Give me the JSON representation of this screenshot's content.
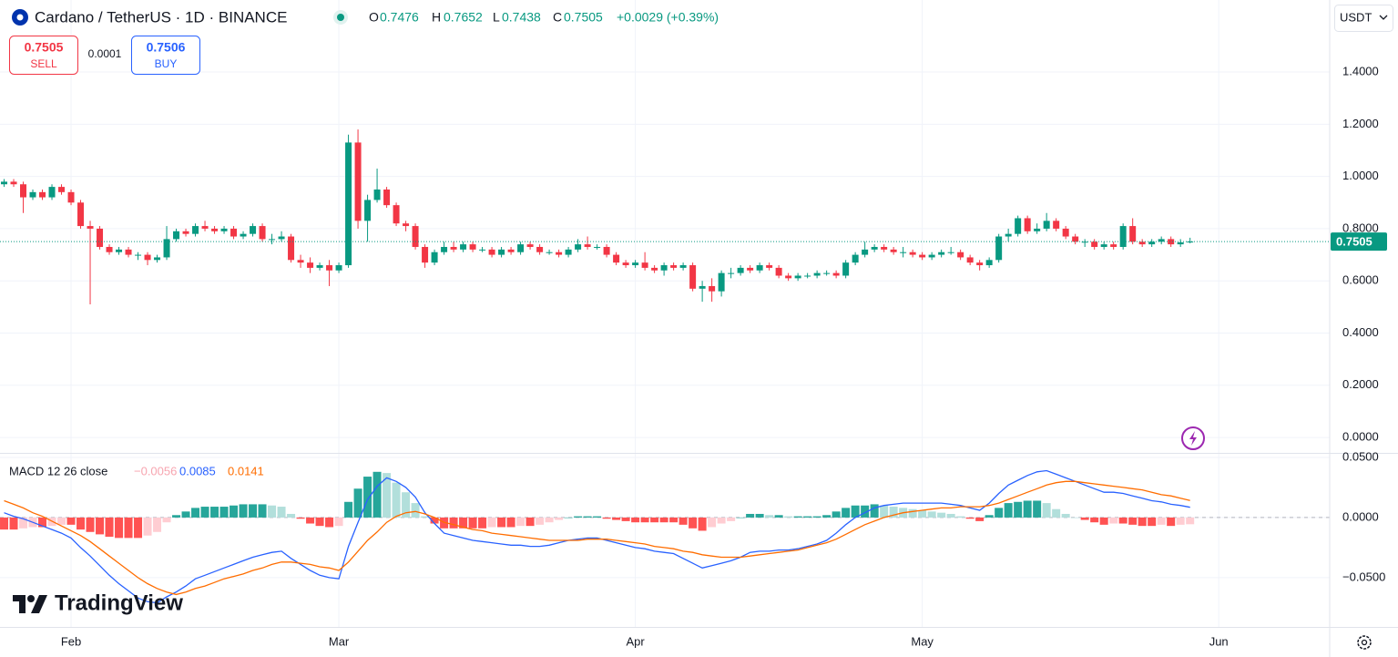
{
  "header": {
    "title": "Cardano / TetherUS · 1D · BINANCE",
    "o_label": "O",
    "o": "0.7476",
    "h_label": "H",
    "h": "0.7652",
    "l_label": "L",
    "l": "0.7438",
    "c_label": "C",
    "c": "0.7505",
    "change": "+0.0029 (+0.39%)",
    "sell_price": "0.7505",
    "sell": "SELL",
    "spread": "0.0001",
    "buy_price": "0.7506",
    "buy": "BUY",
    "currency": "USDT",
    "branding": "TradingView"
  },
  "chart_data": [
    {
      "type": "candlestick",
      "up_color": "#089981",
      "down_color": "#f23645",
      "x": [
        -7,
        -6,
        -5,
        -4,
        -3,
        -2,
        -1,
        0,
        1,
        2,
        3,
        4,
        5,
        6,
        7,
        8,
        9,
        10,
        11,
        12,
        13,
        14,
        15,
        16,
        17,
        18,
        19,
        20,
        21,
        22,
        23,
        24,
        25,
        26,
        27,
        28,
        29,
        30,
        31,
        32,
        33,
        34,
        35,
        36,
        37,
        38,
        39,
        40,
        41,
        42,
        43,
        44,
        45,
        46,
        47,
        48,
        49,
        50,
        51,
        52,
        53,
        54,
        55,
        56,
        57,
        58,
        59,
        60,
        61,
        62,
        63,
        64,
        65,
        66,
        67,
        68,
        69,
        70,
        71,
        72,
        73,
        74,
        75,
        76,
        77,
        78,
        79,
        80,
        81,
        82,
        83,
        84,
        85,
        86,
        87,
        88,
        89,
        90,
        91,
        92,
        93,
        94,
        95,
        96,
        97,
        98,
        99,
        100,
        101,
        102,
        103,
        104,
        105,
        106,
        107,
        108,
        109,
        110,
        111,
        112,
        113,
        114,
        115,
        116,
        117
      ],
      "open": [
        0.97,
        0.98,
        0.97,
        0.92,
        0.94,
        0.92,
        0.96,
        0.94,
        0.9,
        0.81,
        0.8,
        0.73,
        0.71,
        0.72,
        0.7,
        0.7,
        0.68,
        0.69,
        0.76,
        0.79,
        0.78,
        0.81,
        0.8,
        0.79,
        0.8,
        0.77,
        0.78,
        0.81,
        0.76,
        0.76,
        0.77,
        0.68,
        0.67,
        0.65,
        0.66,
        0.64,
        0.66,
        1.13,
        0.83,
        0.91,
        0.95,
        0.89,
        0.82,
        0.81,
        0.73,
        0.67,
        0.71,
        0.73,
        0.72,
        0.74,
        0.72,
        0.72,
        0.7,
        0.72,
        0.71,
        0.74,
        0.73,
        0.71,
        0.71,
        0.7,
        0.72,
        0.74,
        0.73,
        0.73,
        0.7,
        0.67,
        0.66,
        0.67,
        0.65,
        0.64,
        0.66,
        0.65,
        0.66,
        0.57,
        0.58,
        0.56,
        0.63,
        0.63,
        0.65,
        0.64,
        0.66,
        0.65,
        0.62,
        0.61,
        0.62,
        0.62,
        0.63,
        0.63,
        0.62,
        0.67,
        0.7,
        0.72,
        0.73,
        0.72,
        0.71,
        0.71,
        0.7,
        0.69,
        0.7,
        0.71,
        0.71,
        0.69,
        0.67,
        0.66,
        0.68,
        0.77,
        0.78,
        0.84,
        0.79,
        0.8,
        0.83,
        0.8,
        0.77,
        0.75,
        0.75,
        0.73,
        0.74,
        0.73,
        0.81,
        0.75,
        0.74,
        0.75,
        0.76,
        0.74,
        0.7476
      ],
      "high": [
        0.99,
        0.99,
        0.98,
        0.95,
        0.95,
        0.97,
        0.97,
        0.95,
        0.91,
        0.83,
        0.81,
        0.74,
        0.73,
        0.73,
        0.71,
        0.71,
        0.7,
        0.81,
        0.8,
        0.8,
        0.82,
        0.83,
        0.81,
        0.81,
        0.81,
        0.79,
        0.82,
        0.82,
        0.78,
        0.79,
        0.78,
        0.7,
        0.69,
        0.67,
        0.68,
        0.67,
        1.16,
        1.18,
        0.93,
        1.03,
        0.96,
        0.9,
        0.83,
        0.82,
        0.74,
        0.72,
        0.75,
        0.75,
        0.75,
        0.75,
        0.73,
        0.73,
        0.73,
        0.73,
        0.75,
        0.75,
        0.74,
        0.72,
        0.72,
        0.73,
        0.76,
        0.77,
        0.74,
        0.74,
        0.71,
        0.68,
        0.68,
        0.71,
        0.66,
        0.67,
        0.67,
        0.67,
        0.67,
        0.6,
        0.61,
        0.64,
        0.65,
        0.66,
        0.66,
        0.67,
        0.67,
        0.66,
        0.63,
        0.63,
        0.63,
        0.64,
        0.64,
        0.64,
        0.68,
        0.71,
        0.75,
        0.74,
        0.74,
        0.73,
        0.73,
        0.72,
        0.71,
        0.71,
        0.72,
        0.73,
        0.72,
        0.7,
        0.68,
        0.69,
        0.78,
        0.8,
        0.85,
        0.85,
        0.82,
        0.86,
        0.84,
        0.81,
        0.78,
        0.76,
        0.76,
        0.75,
        0.75,
        0.82,
        0.84,
        0.76,
        0.76,
        0.77,
        0.77,
        0.76,
        0.7652
      ],
      "low": [
        0.96,
        0.96,
        0.86,
        0.91,
        0.91,
        0.91,
        0.93,
        0.89,
        0.8,
        0.51,
        0.72,
        0.7,
        0.7,
        0.69,
        0.68,
        0.66,
        0.67,
        0.68,
        0.75,
        0.77,
        0.77,
        0.79,
        0.78,
        0.78,
        0.76,
        0.76,
        0.77,
        0.75,
        0.74,
        0.75,
        0.67,
        0.65,
        0.63,
        0.64,
        0.58,
        0.63,
        0.65,
        0.8,
        0.75,
        0.9,
        0.88,
        0.81,
        0.79,
        0.72,
        0.65,
        0.66,
        0.7,
        0.71,
        0.71,
        0.71,
        0.71,
        0.69,
        0.69,
        0.7,
        0.7,
        0.72,
        0.7,
        0.7,
        0.69,
        0.69,
        0.71,
        0.72,
        0.72,
        0.69,
        0.66,
        0.65,
        0.65,
        0.64,
        0.63,
        0.62,
        0.64,
        0.64,
        0.56,
        0.52,
        0.52,
        0.54,
        0.61,
        0.62,
        0.63,
        0.63,
        0.64,
        0.61,
        0.6,
        0.6,
        0.61,
        0.61,
        0.62,
        0.61,
        0.61,
        0.66,
        0.69,
        0.71,
        0.71,
        0.7,
        0.69,
        0.69,
        0.68,
        0.68,
        0.69,
        0.7,
        0.68,
        0.66,
        0.64,
        0.65,
        0.67,
        0.75,
        0.77,
        0.78,
        0.78,
        0.79,
        0.79,
        0.76,
        0.74,
        0.73,
        0.72,
        0.72,
        0.72,
        0.72,
        0.74,
        0.73,
        0.73,
        0.74,
        0.73,
        0.73,
        0.7438
      ],
      "close": [
        0.98,
        0.97,
        0.92,
        0.94,
        0.92,
        0.96,
        0.94,
        0.9,
        0.81,
        0.8,
        0.73,
        0.71,
        0.72,
        0.7,
        0.7,
        0.68,
        0.69,
        0.76,
        0.79,
        0.78,
        0.81,
        0.8,
        0.79,
        0.8,
        0.77,
        0.78,
        0.81,
        0.76,
        0.76,
        0.77,
        0.68,
        0.67,
        0.65,
        0.66,
        0.64,
        0.66,
        1.13,
        0.83,
        0.91,
        0.95,
        0.89,
        0.82,
        0.81,
        0.73,
        0.67,
        0.71,
        0.73,
        0.72,
        0.74,
        0.72,
        0.72,
        0.7,
        0.72,
        0.71,
        0.74,
        0.73,
        0.71,
        0.71,
        0.7,
        0.72,
        0.74,
        0.73,
        0.73,
        0.7,
        0.67,
        0.66,
        0.67,
        0.65,
        0.64,
        0.66,
        0.65,
        0.66,
        0.57,
        0.58,
        0.56,
        0.63,
        0.63,
        0.65,
        0.64,
        0.66,
        0.65,
        0.62,
        0.61,
        0.62,
        0.62,
        0.63,
        0.63,
        0.62,
        0.67,
        0.7,
        0.72,
        0.73,
        0.72,
        0.71,
        0.71,
        0.7,
        0.69,
        0.7,
        0.71,
        0.71,
        0.69,
        0.67,
        0.66,
        0.68,
        0.77,
        0.78,
        0.84,
        0.79,
        0.8,
        0.83,
        0.8,
        0.77,
        0.75,
        0.75,
        0.73,
        0.74,
        0.73,
        0.81,
        0.75,
        0.74,
        0.75,
        0.76,
        0.74,
        0.7476,
        0.7505
      ],
      "last_price": {
        "value": 0.7505,
        "label": "0.7505"
      },
      "xlim": [
        -7.43,
        131.6
      ],
      "xticks": [
        {
          "value": 0,
          "label": "Feb"
        },
        {
          "value": 28,
          "label": "Mar"
        },
        {
          "value": 59,
          "label": "Apr"
        },
        {
          "value": 89,
          "label": "May"
        },
        {
          "value": 120,
          "label": "Jun"
        }
      ],
      "ylim": [
        -0.059,
        1.676
      ],
      "yticks": [
        {
          "value": 0,
          "label": "0.0000"
        },
        {
          "value": 0.2,
          "label": "0.2000"
        },
        {
          "value": 0.4,
          "label": "0.4000"
        },
        {
          "value": 0.6,
          "label": "0.6000"
        },
        {
          "value": 0.8,
          "label": "0.8000"
        },
        {
          "value": 1.0,
          "label": "1.0000"
        },
        {
          "value": 1.2,
          "label": "1.2000"
        },
        {
          "value": 1.4,
          "label": "1.4000"
        }
      ],
      "grid": true
    },
    {
      "type": "macd",
      "title": "MACD 12 26 close",
      "ylim": [
        -0.091,
        0.053
      ],
      "yticks": [
        {
          "value": -0.05,
          "label": "−0.0500"
        },
        {
          "value": 0,
          "label": "0.0000"
        },
        {
          "value": 0.05,
          "label": "0.0500"
        }
      ],
      "series": [
        {
          "kind": "histogram",
          "colors": [
            "#26a69a",
            "#b2dfdb",
            "#ff5252",
            "#ffcdd2"
          ],
          "legend_color": "#f7a5b0",
          "legend_value": "−0.0056",
          "values": [
            -0.01,
            -0.01,
            -0.009,
            -0.008,
            -0.008,
            -0.007,
            -0.006,
            -0.006,
            -0.01,
            -0.012,
            -0.014,
            -0.016,
            -0.017,
            -0.017,
            -0.017,
            -0.015,
            -0.012,
            -0.004,
            0.002,
            0.005,
            0.008,
            0.009,
            0.009,
            0.009,
            0.01,
            0.011,
            0.011,
            0.011,
            0.01,
            0.009,
            0.003,
            -0.001,
            -0.005,
            -0.007,
            -0.008,
            -0.007,
            0.013,
            0.024,
            0.034,
            0.038,
            0.037,
            0.029,
            0.021,
            0.012,
            0.001,
            -0.005,
            -0.009,
            -0.009,
            -0.009,
            -0.009,
            -0.009,
            -0.008,
            -0.008,
            -0.008,
            -0.007,
            -0.007,
            -0.006,
            -0.004,
            -0.002,
            0.0,
            0.001,
            0.001,
            0.001,
            -0.001,
            -0.002,
            -0.003,
            -0.004,
            -0.004,
            -0.004,
            -0.004,
            -0.004,
            -0.006,
            -0.009,
            -0.011,
            -0.008,
            -0.005,
            -0.003,
            0.0,
            0.003,
            0.003,
            0.002,
            0.002,
            0.001,
            0.001,
            0.001,
            0.001,
            0.002,
            0.005,
            0.008,
            0.01,
            0.01,
            0.011,
            0.01,
            0.009,
            0.008,
            0.007,
            0.006,
            0.005,
            0.004,
            0.003,
            0.001,
            -0.001,
            -0.003,
            0.002,
            0.008,
            0.012,
            0.013,
            0.014,
            0.014,
            0.012,
            0.007,
            0.003,
            0.0,
            -0.002,
            -0.004,
            -0.006,
            -0.005,
            -0.005,
            -0.006,
            -0.007,
            -0.007,
            -0.006,
            -0.007,
            -0.006,
            -0.0056
          ]
        },
        {
          "kind": "line",
          "color": "#2962ff",
          "legend_value": "0.0085",
          "values": [
            0.004,
            0.001,
            -0.001,
            -0.004,
            -0.007,
            -0.01,
            -0.013,
            -0.017,
            -0.025,
            -0.032,
            -0.04,
            -0.048,
            -0.055,
            -0.061,
            -0.067,
            -0.07,
            -0.071,
            -0.066,
            -0.062,
            -0.057,
            -0.051,
            -0.048,
            -0.045,
            -0.042,
            -0.039,
            -0.036,
            -0.033,
            -0.031,
            -0.029,
            -0.028,
            -0.034,
            -0.039,
            -0.044,
            -0.048,
            -0.05,
            -0.051,
            -0.024,
            -0.004,
            0.015,
            0.026,
            0.033,
            0.03,
            0.025,
            0.017,
            0.004,
            -0.005,
            -0.013,
            -0.015,
            -0.017,
            -0.019,
            -0.02,
            -0.021,
            -0.022,
            -0.023,
            -0.023,
            -0.024,
            -0.024,
            -0.023,
            -0.021,
            -0.019,
            -0.018,
            -0.017,
            -0.017,
            -0.019,
            -0.021,
            -0.023,
            -0.025,
            -0.026,
            -0.028,
            -0.029,
            -0.03,
            -0.034,
            -0.038,
            -0.042,
            -0.04,
            -0.038,
            -0.036,
            -0.033,
            -0.029,
            -0.028,
            -0.028,
            -0.027,
            -0.027,
            -0.026,
            -0.024,
            -0.022,
            -0.019,
            -0.013,
            -0.006,
            0.0,
            0.004,
            0.008,
            0.01,
            0.011,
            0.012,
            0.012,
            0.012,
            0.012,
            0.012,
            0.011,
            0.01,
            0.008,
            0.006,
            0.012,
            0.02,
            0.027,
            0.031,
            0.035,
            0.038,
            0.039,
            0.036,
            0.033,
            0.03,
            0.027,
            0.024,
            0.021,
            0.021,
            0.02,
            0.018,
            0.016,
            0.014,
            0.013,
            0.011,
            0.01,
            0.0085
          ]
        },
        {
          "kind": "line",
          "color": "#ff6d00",
          "legend_value": "0.0141",
          "values": [
            0.014,
            0.011,
            0.008,
            0.004,
            0.001,
            -0.003,
            -0.007,
            -0.011,
            -0.015,
            -0.02,
            -0.026,
            -0.032,
            -0.038,
            -0.044,
            -0.05,
            -0.055,
            -0.059,
            -0.062,
            -0.064,
            -0.062,
            -0.059,
            -0.057,
            -0.054,
            -0.051,
            -0.049,
            -0.047,
            -0.044,
            -0.042,
            -0.039,
            -0.037,
            -0.037,
            -0.038,
            -0.039,
            -0.041,
            -0.042,
            -0.044,
            -0.037,
            -0.028,
            -0.019,
            -0.012,
            -0.004,
            0.001,
            0.004,
            0.005,
            0.003,
            0.0,
            -0.004,
            -0.006,
            -0.008,
            -0.01,
            -0.011,
            -0.013,
            -0.014,
            -0.015,
            -0.016,
            -0.017,
            -0.018,
            -0.019,
            -0.019,
            -0.019,
            -0.019,
            -0.018,
            -0.018,
            -0.018,
            -0.019,
            -0.02,
            -0.021,
            -0.022,
            -0.024,
            -0.025,
            -0.026,
            -0.028,
            -0.029,
            -0.031,
            -0.032,
            -0.033,
            -0.033,
            -0.033,
            -0.032,
            -0.031,
            -0.03,
            -0.029,
            -0.028,
            -0.027,
            -0.025,
            -0.023,
            -0.021,
            -0.018,
            -0.014,
            -0.01,
            -0.006,
            -0.003,
            0.0,
            0.002,
            0.004,
            0.005,
            0.006,
            0.007,
            0.008,
            0.008,
            0.009,
            0.009,
            0.009,
            0.01,
            0.012,
            0.015,
            0.018,
            0.021,
            0.024,
            0.027,
            0.029,
            0.03,
            0.03,
            0.029,
            0.028,
            0.027,
            0.026,
            0.025,
            0.024,
            0.023,
            0.021,
            0.019,
            0.018,
            0.016,
            0.0141
          ]
        }
      ],
      "grid": true
    }
  ]
}
